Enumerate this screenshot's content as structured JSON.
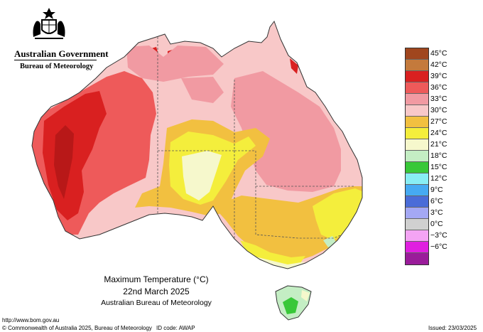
{
  "header": {
    "government": "Australian Government",
    "agency": "Bureau of Meteorology"
  },
  "map": {
    "region": "Australia",
    "title": "Maximum Temperature (°C)",
    "date": "22nd March 2025",
    "source": "Australian Bureau of Meteorology"
  },
  "legend": {
    "items": [
      {
        "label": "45°C",
        "color": "#a0461e"
      },
      {
        "label": "42°C",
        "color": "#c47a3c"
      },
      {
        "label": "39°C",
        "color": "#d92020"
      },
      {
        "label": "36°C",
        "color": "#ee5a5a"
      },
      {
        "label": "33°C",
        "color": "#f19aa2"
      },
      {
        "label": "30°C",
        "color": "#f8c8c8"
      },
      {
        "label": "27°C",
        "color": "#f2c040"
      },
      {
        "label": "24°C",
        "color": "#f4ee3c"
      },
      {
        "label": "21°C",
        "color": "#f6f8cc"
      },
      {
        "label": "18°C",
        "color": "#c4eec4"
      },
      {
        "label": "15°C",
        "color": "#38c838"
      },
      {
        "label": "12°C",
        "color": "#88eef4"
      },
      {
        "label": "9°C",
        "color": "#46aaf2"
      },
      {
        "label": "6°C",
        "color": "#4a6cd8"
      },
      {
        "label": "3°C",
        "color": "#a4a8f4"
      },
      {
        "label": "0°C",
        "color": "#d0d0d0"
      },
      {
        "label": "−3°C",
        "color": "#f4a4f4"
      },
      {
        "label": "−6°C",
        "color": "#e020e0"
      },
      {
        "label": "",
        "color": "#9a1c9a"
      }
    ]
  },
  "footer": {
    "url": "http://www.bom.gov.au",
    "copyright": "© Commonwealth of Australia 2025, Bureau of Meteorology",
    "id_code": "ID code: AWAP",
    "issued": "Issued: 23/03/2025"
  }
}
